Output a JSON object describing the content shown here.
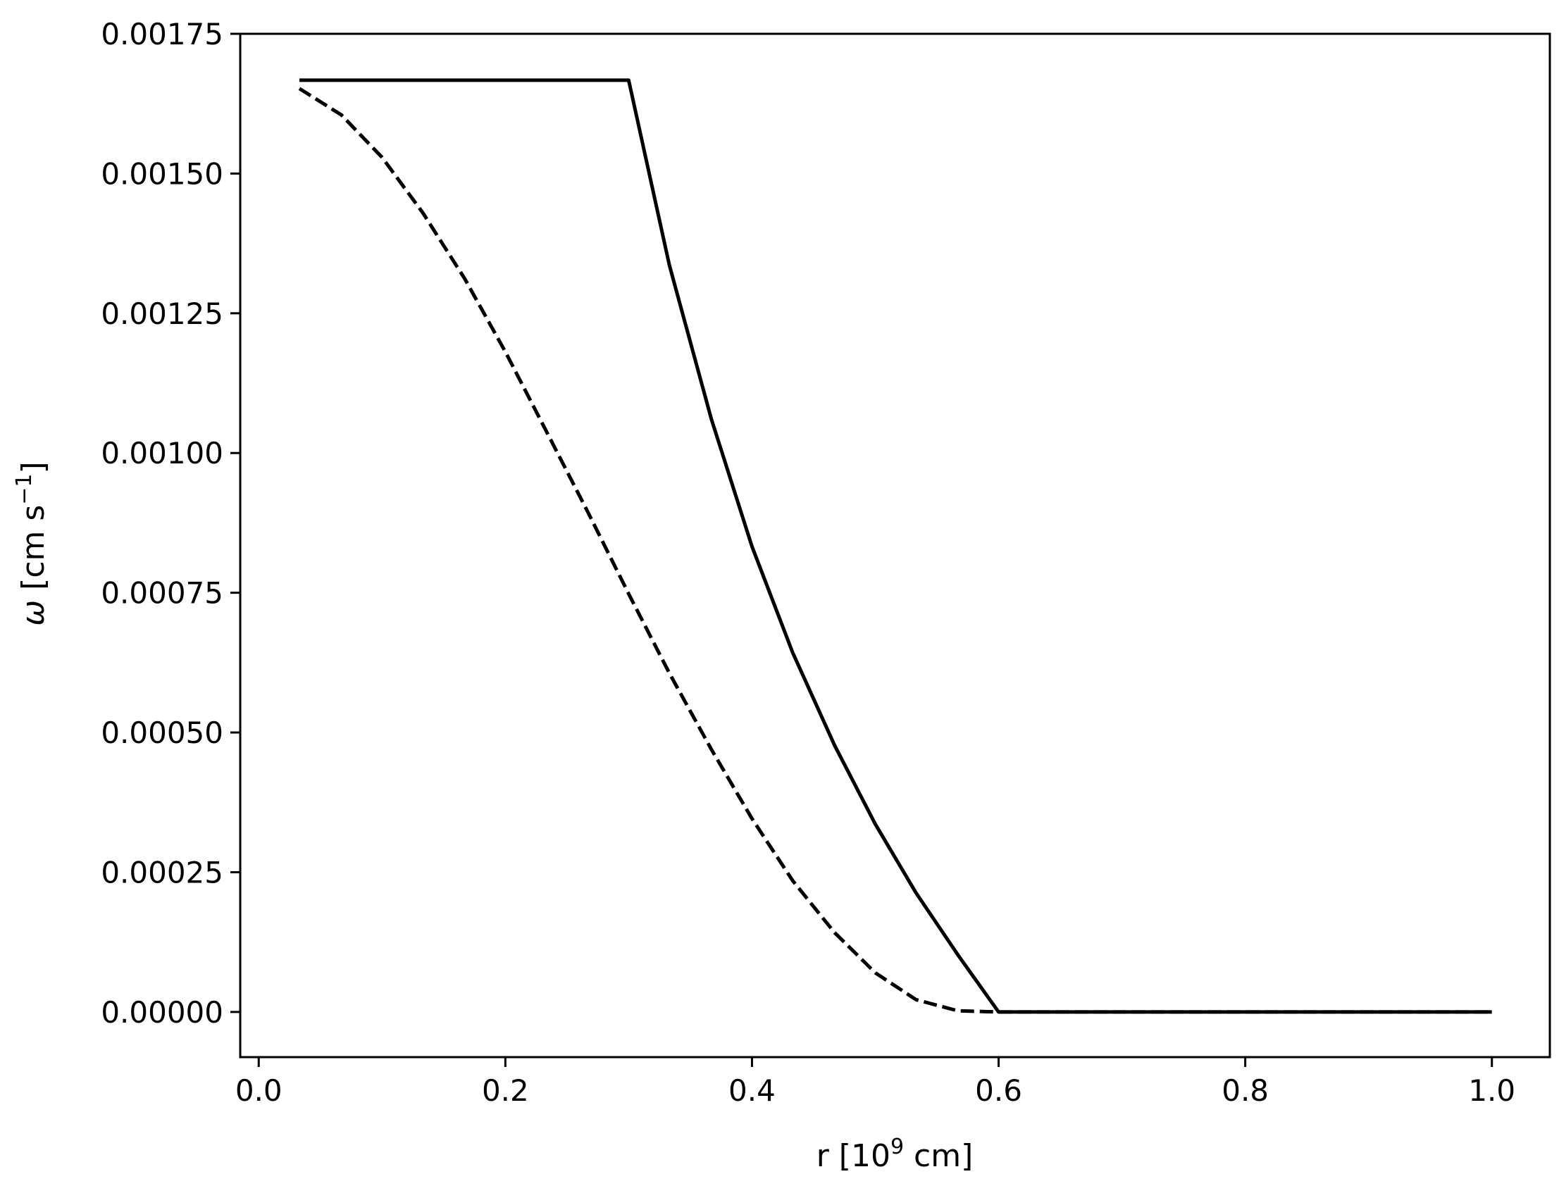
{
  "chart_data": {
    "type": "line",
    "title": "",
    "xlabel": {
      "base": "r [10",
      "sup": "9",
      "suffix": " cm]"
    },
    "ylabel": {
      "symbol": "ω",
      "base": " [cm s",
      "sup": "−1",
      "suffix": "]"
    },
    "xlim": [
      -0.015,
      1.047
    ],
    "ylim": [
      -8.08e-05,
      0.00175
    ],
    "xticks": [
      0.0,
      0.2,
      0.4,
      0.6,
      0.8,
      1.0
    ],
    "xtick_labels": [
      "0.0",
      "0.2",
      "0.4",
      "0.6",
      "0.8",
      "1.0"
    ],
    "yticks": [
      0.0,
      0.00025,
      0.0005,
      0.00075,
      0.001,
      0.00125,
      0.0015,
      0.00175
    ],
    "ytick_labels": [
      "0.00000",
      "0.00025",
      "0.00050",
      "0.00075",
      "0.00100",
      "0.00125",
      "0.00150",
      "0.00175"
    ],
    "grid": false,
    "series": [
      {
        "style": "solid",
        "color": "#000000",
        "x": [
          0.033,
          0.1,
          0.2,
          0.3,
          0.333,
          0.367,
          0.4,
          0.433,
          0.467,
          0.5,
          0.533,
          0.567,
          0.6,
          0.7,
          0.8,
          0.9,
          1.0
        ],
        "y": [
          0.001667,
          0.001667,
          0.001667,
          0.001667,
          0.001336,
          0.001061,
          0.000833,
          0.000643,
          0.000477,
          0.000336,
          0.000213,
          0.000102,
          0.0,
          0.0,
          0.0,
          0.0,
          0.0
        ]
      },
      {
        "style": "dashed",
        "color": "#000000",
        "x": [
          0.033,
          0.067,
          0.1,
          0.133,
          0.167,
          0.2,
          0.233,
          0.267,
          0.3,
          0.333,
          0.367,
          0.4,
          0.433,
          0.467,
          0.5,
          0.533,
          0.567,
          0.6,
          0.7,
          0.8,
          0.9,
          1.0
        ],
        "y": [
          0.001652,
          0.001605,
          0.001529,
          0.00143,
          0.001312,
          0.001181,
          0.00104,
          0.000894,
          0.000748,
          0.000606,
          0.00047,
          0.000346,
          0.000235,
          0.000142,
          7e-05,
          2.2e-05,
          2e-06,
          0.0,
          0.0,
          0.0,
          0.0,
          0.0
        ]
      }
    ]
  }
}
